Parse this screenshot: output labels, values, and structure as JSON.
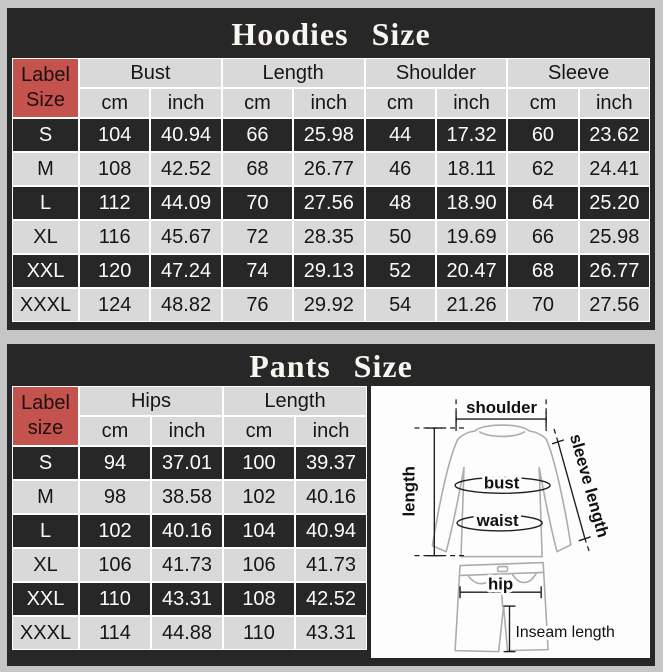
{
  "colors": {
    "outer_background": "#c6c6c6",
    "panel_background": "#272727",
    "dark_cell": "#272727",
    "light_cell": "#d9d9d9",
    "red_label_cell": "#c4534e",
    "cell_border": "#ffffff",
    "title_text": "#f8f6ef"
  },
  "chart_data": [
    {
      "type": "table",
      "title": "Hoodies Size",
      "label_line1": "Label",
      "label_line2": "Size",
      "column_groups": [
        "Bust",
        "Length",
        "Shoulder",
        "Sleeve"
      ],
      "sub_columns": [
        "cm",
        "inch"
      ],
      "rows": [
        {
          "size": "S",
          "values": [
            "104",
            "40.94",
            "66",
            "25.98",
            "44",
            "17.32",
            "60",
            "23.62"
          ]
        },
        {
          "size": "M",
          "values": [
            "108",
            "42.52",
            "68",
            "26.77",
            "46",
            "18.11",
            "62",
            "24.41"
          ]
        },
        {
          "size": "L",
          "values": [
            "112",
            "44.09",
            "70",
            "27.56",
            "48",
            "18.90",
            "64",
            "25.20"
          ]
        },
        {
          "size": "XL",
          "values": [
            "116",
            "45.67",
            "72",
            "28.35",
            "50",
            "19.69",
            "66",
            "25.98"
          ]
        },
        {
          "size": "XXL",
          "values": [
            "120",
            "47.24",
            "74",
            "29.13",
            "52",
            "20.47",
            "68",
            "26.77"
          ]
        },
        {
          "size": "XXXL",
          "values": [
            "124",
            "48.82",
            "76",
            "29.92",
            "54",
            "21.26",
            "70",
            "27.56"
          ]
        }
      ]
    },
    {
      "type": "table",
      "title": "Pants Size",
      "label_line1": "Label",
      "label_line2": "size",
      "column_groups": [
        "Hips",
        "Length"
      ],
      "sub_columns": [
        "cm",
        "inch"
      ],
      "rows": [
        {
          "size": "S",
          "values": [
            "94",
            "37.01",
            "100",
            "39.37"
          ]
        },
        {
          "size": "M",
          "values": [
            "98",
            "38.58",
            "102",
            "40.16"
          ]
        },
        {
          "size": "L",
          "values": [
            "102",
            "40.16",
            "104",
            "40.94"
          ]
        },
        {
          "size": "XL",
          "values": [
            "106",
            "41.73",
            "106",
            "41.73"
          ]
        },
        {
          "size": "XXL",
          "values": [
            "110",
            "43.31",
            "108",
            "42.52"
          ]
        },
        {
          "size": "XXXL",
          "values": [
            "114",
            "44.88",
            "110",
            "43.31"
          ]
        }
      ]
    }
  ],
  "diagram": {
    "shoulder": "shoulder",
    "length": "length",
    "bust": "bust",
    "waist": "waist",
    "sleeve_length": "sleeve length",
    "hip": "hip",
    "inseam_length": "Inseam length"
  }
}
